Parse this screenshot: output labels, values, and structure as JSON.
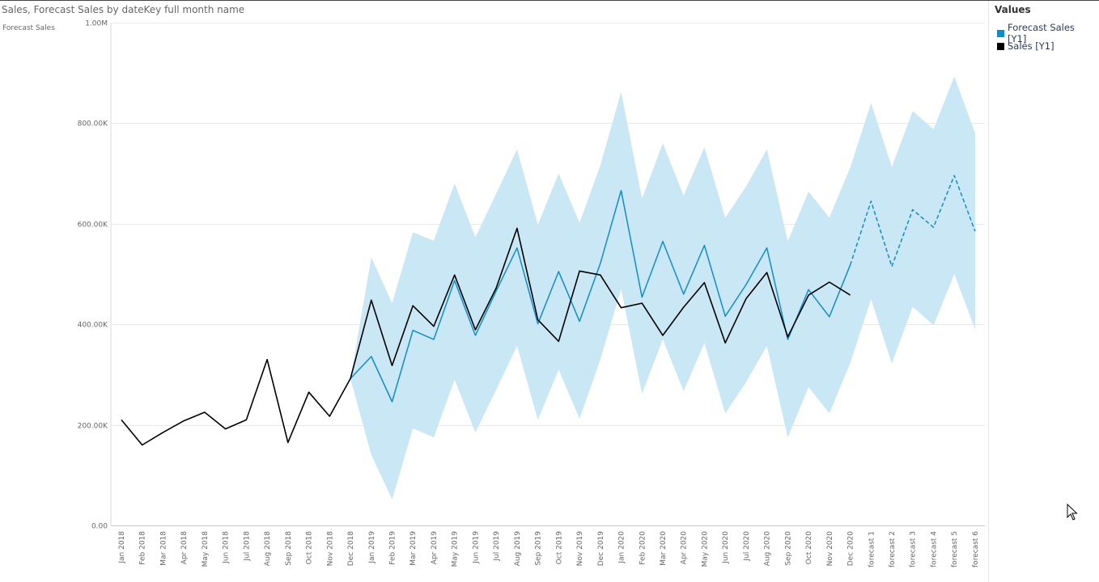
{
  "title": "Sales, Forecast Sales by dateKey full month name",
  "legend": {
    "title": "Values",
    "items": [
      {
        "label": "Forecast Sales [Y1]",
        "color": "#118dc8"
      },
      {
        "label": "Sales [Y1]",
        "color": "#000000"
      }
    ]
  },
  "chart_data": {
    "type": "line",
    "ylabel": "Forecast Sales",
    "xlabel": "",
    "ylim": [
      0,
      1000000
    ],
    "yticks": [
      0,
      200000,
      400000,
      600000,
      800000,
      1000000
    ],
    "ytick_labels": [
      "0.00",
      "200.00K",
      "400.00K",
      "600.00K",
      "800.00K",
      "1.00M"
    ],
    "grid": true,
    "legend_position": "right",
    "categories": [
      "Jan 2018",
      "Feb 2018",
      "Mar 2018",
      "Apr 2018",
      "May 2018",
      "Jun 2018",
      "Jul 2018",
      "Aug 2018",
      "Sep 2018",
      "Oct 2018",
      "Nov 2018",
      "Dec 2018",
      "Jan 2019",
      "Feb 2019",
      "Mar 2019",
      "Apr 2019",
      "May 2019",
      "Jun 2019",
      "Jul 2019",
      "Aug 2019",
      "Sep 2019",
      "Oct 2019",
      "Nov 2019",
      "Dec 2019",
      "Jan 2020",
      "Feb 2020",
      "Mar 2020",
      "Apr 2020",
      "May 2020",
      "Jun 2020",
      "Jul 2020",
      "Aug 2020",
      "Sep 2020",
      "Oct 2020",
      "Nov 2020",
      "Dec 2020",
      "forecast 1",
      "forecast 2",
      "forecast 3",
      "forecast 4",
      "forecast 5",
      "forecast 6"
    ],
    "series": [
      {
        "name": "Sales [Y1]",
        "color": "#000000",
        "values": [
          210000,
          160000,
          185000,
          208000,
          225000,
          192000,
          210000,
          330000,
          165000,
          265000,
          217000,
          292000,
          448000,
          318000,
          437000,
          396000,
          498000,
          389000,
          472000,
          591000,
          409000,
          366000,
          506000,
          498000,
          433000,
          442000,
          378000,
          434000,
          483000,
          363000,
          451000,
          503000,
          375000,
          458000,
          484000,
          458000,
          null,
          null,
          null,
          null,
          null,
          null
        ]
      },
      {
        "name": "Forecast Sales [Y1]",
        "color": "#118dc8",
        "forecast_line_style": "dashed",
        "values": [
          null,
          null,
          null,
          null,
          null,
          null,
          null,
          null,
          null,
          null,
          null,
          292000,
          336000,
          246000,
          388000,
          370000,
          487000,
          378000,
          466000,
          552000,
          401000,
          505000,
          406000,
          521000,
          666000,
          454000,
          565000,
          460000,
          557000,
          416000,
          479000,
          552000,
          370000,
          469000,
          415000,
          518000,
          645000,
          515000,
          628000,
          593000,
          696000,
          585000
        ]
      }
    ],
    "confidence_band": {
      "color": "#c9e7f5",
      "lower": [
        null,
        null,
        null,
        null,
        null,
        null,
        null,
        null,
        null,
        null,
        null,
        292000,
        140000,
        52000,
        193000,
        175000,
        290000,
        185000,
        270000,
        357000,
        210000,
        310000,
        212000,
        330000,
        470000,
        262000,
        370000,
        267000,
        363000,
        223000,
        285000,
        357000,
        175000,
        275000,
        223000,
        323000,
        450000,
        322000,
        435000,
        398000,
        500000,
        390000
      ],
      "upper": [
        null,
        null,
        null,
        null,
        null,
        null,
        null,
        null,
        null,
        null,
        null,
        292000,
        533000,
        442000,
        583000,
        566000,
        680000,
        573000,
        660000,
        748000,
        598000,
        700000,
        602000,
        716000,
        862000,
        650000,
        760000,
        656000,
        752000,
        612000,
        674000,
        748000,
        565000,
        664000,
        612000,
        712000,
        840000,
        713000,
        824000,
        788000,
        893000,
        780000
      ]
    }
  }
}
